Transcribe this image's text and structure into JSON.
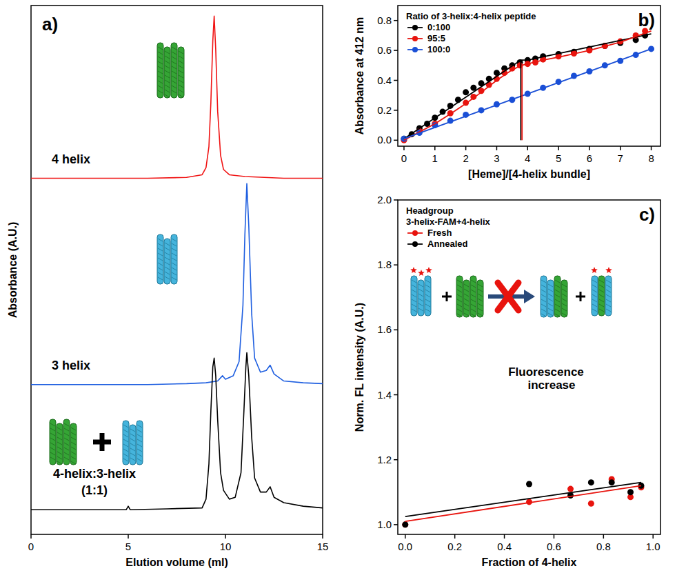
{
  "chart_data": [
    {
      "type": "line",
      "panel_label": "a)",
      "x_label": "Elution volume (ml)",
      "y_label": "Absorbance (A.U.)",
      "xlim": [
        0,
        15
      ],
      "xticks": [
        0,
        5,
        10,
        15
      ],
      "ylim": [
        0,
        3
      ],
      "tick_labels": "x",
      "series": [
        {
          "name": "4 helix",
          "color": "#f01414",
          "x": [
            0,
            2,
            4,
            6,
            8,
            8.8,
            9.0,
            9.15,
            9.25,
            9.35,
            9.42,
            9.5,
            9.6,
            9.75,
            9.9,
            10.2,
            11,
            12,
            13,
            14,
            15
          ],
          "values": [
            2.02,
            2.02,
            2.02,
            2.02,
            2.025,
            2.04,
            2.08,
            2.2,
            2.45,
            2.8,
            2.94,
            2.75,
            2.4,
            2.15,
            2.07,
            2.04,
            2.03,
            2.025,
            2.02,
            2.02,
            2.02
          ]
        },
        {
          "name": "3 helix",
          "color": "#1f5fe0",
          "x": [
            0,
            2,
            4,
            6,
            8,
            9,
            9.6,
            9.85,
            10.0,
            10.4,
            10.7,
            10.9,
            11.0,
            11.1,
            11.2,
            11.35,
            11.5,
            11.8,
            12.1,
            12.3,
            12.5,
            13,
            14,
            15
          ],
          "values": [
            0.85,
            0.85,
            0.85,
            0.85,
            0.855,
            0.86,
            0.87,
            0.9,
            0.88,
            0.9,
            0.98,
            1.3,
            1.7,
            1.99,
            1.75,
            1.25,
            1.0,
            0.92,
            0.93,
            0.96,
            0.91,
            0.87,
            0.86,
            0.855
          ]
        },
        {
          "name": "4-helix:3-helix (1:1)",
          "color": "#000000",
          "x": [
            0,
            2,
            4,
            4.9,
            5.0,
            5.1,
            7,
            8.8,
            9.0,
            9.15,
            9.25,
            9.35,
            9.42,
            9.5,
            9.6,
            9.75,
            9.9,
            10.2,
            10.5,
            10.8,
            10.95,
            11.05,
            11.1,
            11.2,
            11.35,
            11.5,
            11.8,
            12.1,
            12.3,
            12.5,
            13,
            14,
            15
          ],
          "values": [
            0.14,
            0.14,
            0.14,
            0.14,
            0.16,
            0.14,
            0.145,
            0.15,
            0.2,
            0.4,
            0.7,
            0.95,
            1.0,
            0.9,
            0.65,
            0.35,
            0.25,
            0.2,
            0.21,
            0.35,
            0.7,
            0.95,
            1.03,
            0.9,
            0.55,
            0.32,
            0.24,
            0.24,
            0.27,
            0.21,
            0.18,
            0.16,
            0.15
          ]
        }
      ]
    },
    {
      "type": "scatter",
      "panel_label": "b)",
      "x_label": "[Heme]/[4-helix bundle]",
      "y_label": "Absorbance at 412 nm",
      "xlim": [
        -0.2,
        8.3
      ],
      "xticks": [
        0,
        1,
        2,
        3,
        4,
        5,
        6,
        7,
        8
      ],
      "ylim": [
        -0.04,
        0.9
      ],
      "yticks": [
        {
          "value": 0,
          "label": "0.0"
        },
        {
          "value": 0.2,
          "label": "0.2"
        },
        {
          "value": 0.4,
          "label": "0.4"
        },
        {
          "value": 0.6,
          "label": "0.6"
        },
        {
          "value": 0.8,
          "label": "0.8"
        }
      ],
      "legend": "top-left",
      "legend_title": "Ratio of 3-helix:4-helix peptide",
      "series": [
        {
          "name": "0:100",
          "color": "#000000",
          "type": "scatter",
          "marker": "circle",
          "x": [
            0,
            0.25,
            0.5,
            0.75,
            1,
            1.25,
            1.5,
            1.75,
            2,
            2.25,
            2.5,
            2.75,
            3,
            3.25,
            3.5,
            3.75,
            4,
            4.25,
            4.5,
            5,
            5.5,
            6,
            6.5,
            7,
            7.5,
            7.8
          ],
          "values": [
            0.01,
            0.04,
            0.08,
            0.11,
            0.15,
            0.19,
            0.23,
            0.27,
            0.32,
            0.35,
            0.38,
            0.41,
            0.45,
            0.48,
            0.5,
            0.52,
            0.535,
            0.545,
            0.56,
            0.575,
            0.59,
            0.61,
            0.63,
            0.65,
            0.67,
            0.7
          ]
        },
        {
          "name": "95:5",
          "color": "#e8140e",
          "type": "scatter",
          "marker": "circle",
          "x": [
            0,
            0.5,
            1,
            1.5,
            2,
            2.25,
            2.5,
            2.75,
            3,
            3.25,
            3.5,
            3.75,
            4,
            4.25,
            4.5,
            5,
            5.5,
            6,
            6.5,
            7,
            7.5,
            7.8
          ],
          "values": [
            0.0,
            0.06,
            0.11,
            0.18,
            0.25,
            0.29,
            0.33,
            0.37,
            0.41,
            0.45,
            0.48,
            0.5,
            0.51,
            0.52,
            0.54,
            0.56,
            0.58,
            0.6,
            0.63,
            0.66,
            0.7,
            0.73
          ]
        },
        {
          "name": "100:0",
          "color": "#1a4fd6",
          "type": "scatter",
          "marker": "circle",
          "x": [
            0,
            0.5,
            1,
            1.5,
            2,
            2.5,
            3,
            3.5,
            4,
            4.5,
            5,
            5.5,
            6,
            6.5,
            7,
            7.5,
            8
          ],
          "values": [
            0.01,
            0.05,
            0.1,
            0.13,
            0.17,
            0.2,
            0.24,
            0.27,
            0.31,
            0.35,
            0.39,
            0.43,
            0.46,
            0.5,
            0.53,
            0.57,
            0.61
          ]
        },
        {
          "type": "line",
          "color": "#000000",
          "x": [
            0,
            3.78,
            4.0,
            8
          ],
          "values": [
            0.01,
            0.535,
            0.535,
            0.71
          ]
        },
        {
          "type": "line",
          "color": "#e8140e",
          "x": [
            0,
            0.5,
            1,
            1.5,
            2,
            2.5,
            3,
            3.5,
            3.8,
            4,
            4.5,
            5,
            6,
            7,
            8
          ],
          "values": [
            0.0,
            0.055,
            0.11,
            0.175,
            0.245,
            0.32,
            0.4,
            0.47,
            0.5,
            0.51,
            0.535,
            0.555,
            0.6,
            0.655,
            0.73
          ]
        },
        {
          "type": "line",
          "color": "#1a4fd6",
          "x": [
            0,
            8
          ],
          "values": [
            0.01,
            0.61
          ]
        },
        {
          "type": "line",
          "color": "#000000",
          "x": [
            3.78,
            3.78
          ],
          "values": [
            0,
            0.535
          ]
        },
        {
          "type": "line",
          "color": "#e8140e",
          "x": [
            3.82,
            3.82
          ],
          "values": [
            0,
            0.5
          ]
        }
      ]
    },
    {
      "type": "scatter",
      "panel_label": "c)",
      "x_label": "Fraction of 4-helix",
      "y_label": "Norm. FL intensity (A.U.)",
      "xlim": [
        -0.03,
        1.03
      ],
      "xticks": [
        {
          "value": 0,
          "label": "0.0"
        },
        {
          "value": 0.2,
          "label": "0.2"
        },
        {
          "value": 0.4,
          "label": "0.4"
        },
        {
          "value": 0.6,
          "label": "0.6"
        },
        {
          "value": 0.8,
          "label": "0.8"
        },
        {
          "value": 1,
          "label": "1.0"
        }
      ],
      "ylim": [
        0.97,
        2.0
      ],
      "yticks": [
        {
          "value": 1,
          "label": "1.0"
        },
        {
          "value": 1.2,
          "label": "1.2"
        },
        {
          "value": 1.4,
          "label": "1.4"
        },
        {
          "value": 1.6,
          "label": "1.6"
        },
        {
          "value": 1.8,
          "label": "1.8"
        },
        {
          "value": 2,
          "label": "2.0"
        }
      ],
      "legend": "top-left",
      "legend_title": [
        "Headgroup",
        "3-helix-FAM+4-helix"
      ],
      "annotations": [
        "Fluorescence increase"
      ],
      "series": [
        {
          "name": "Fresh",
          "color": "#e8140e",
          "type": "scatter",
          "marker": "circle",
          "x": [
            0,
            0.5,
            0.667,
            0.75,
            0.833,
            0.909,
            0.952
          ],
          "values": [
            1.0,
            1.07,
            1.11,
            1.065,
            1.14,
            1.085,
            1.115
          ]
        },
        {
          "name": "Annealed",
          "color": "#000000",
          "type": "scatter",
          "marker": "circle",
          "x": [
            0,
            0.5,
            0.667,
            0.75,
            0.833,
            0.909,
            0.952
          ],
          "values": [
            1.0,
            1.125,
            1.09,
            1.13,
            1.13,
            1.1,
            1.12
          ]
        },
        {
          "type": "line",
          "color": "#e8140e",
          "x": [
            0,
            0.952
          ],
          "values": [
            1.01,
            1.12
          ]
        },
        {
          "type": "line",
          "color": "#000000",
          "x": [
            0,
            0.952
          ],
          "values": [
            1.025,
            1.13
          ]
        }
      ]
    }
  ]
}
